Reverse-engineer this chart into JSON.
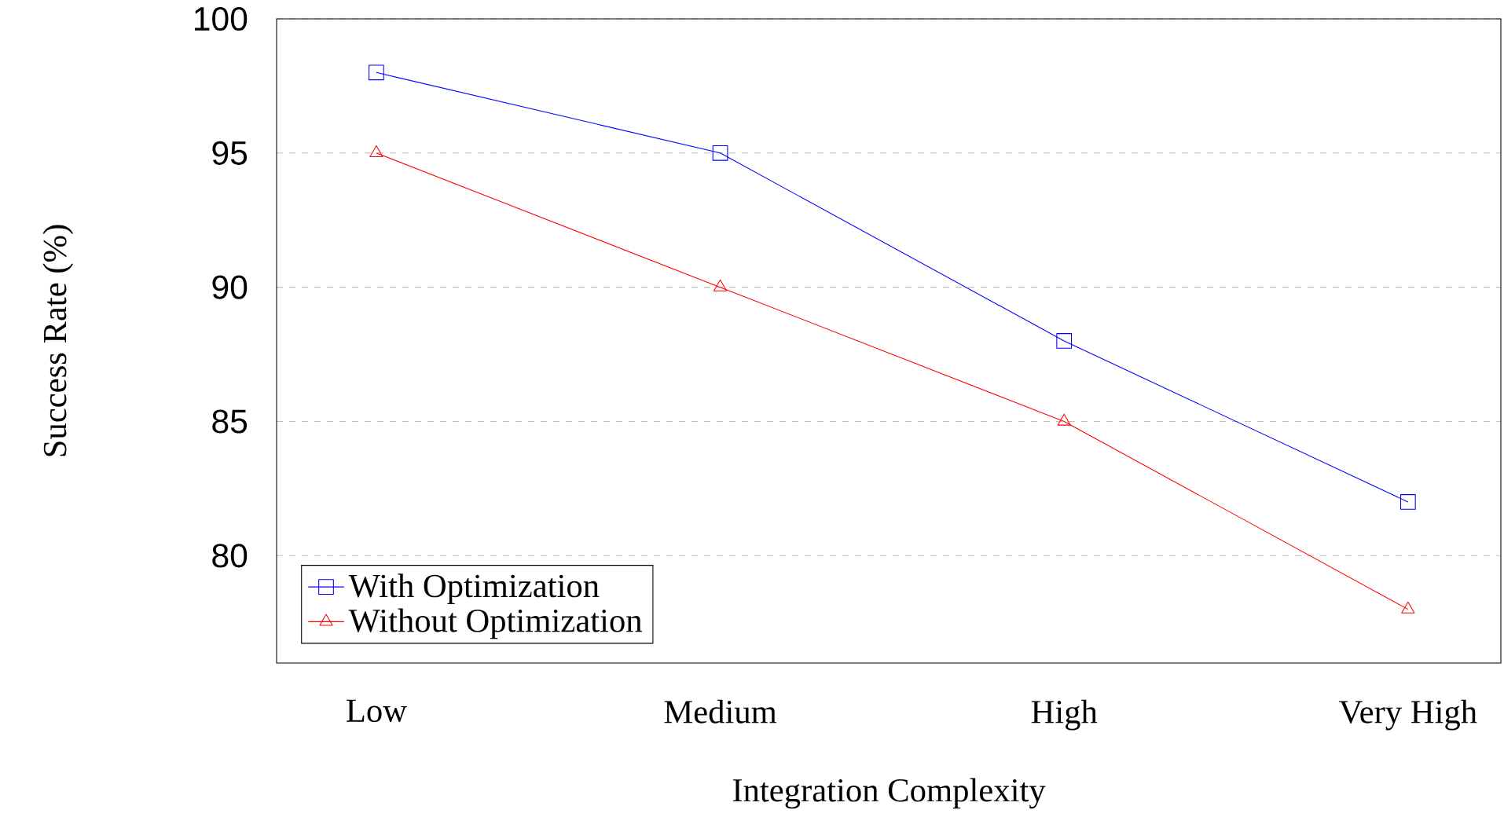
{
  "chart_data": {
    "type": "line",
    "xlabel": "Integration Complexity",
    "ylabel": "Success Rate (%)",
    "categories": [
      "Low",
      "Medium",
      "High",
      "Very High"
    ],
    "series": [
      {
        "name": "With Optimization",
        "color": "#0000ff",
        "marker": "square",
        "values": [
          98,
          95,
          88,
          82
        ]
      },
      {
        "name": "Without Optimization",
        "color": "#ff0000",
        "marker": "triangle",
        "values": [
          95,
          90,
          85,
          78
        ]
      }
    ],
    "ylim": [
      76,
      100
    ],
    "yticks": [
      80,
      85,
      90,
      95,
      100
    ],
    "grid": "y",
    "legend": "bottom left"
  }
}
